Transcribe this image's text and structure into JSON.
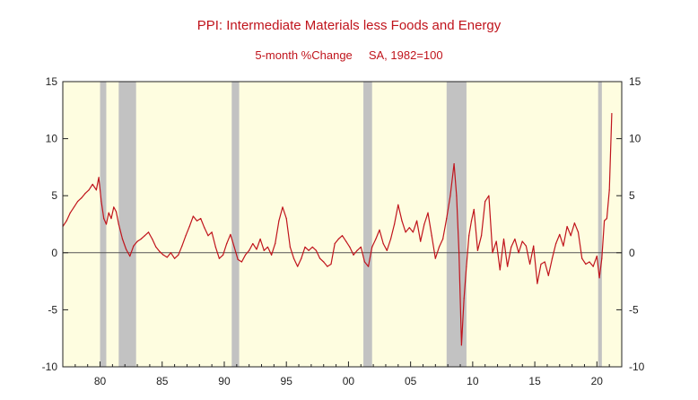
{
  "chart_data": {
    "type": "line",
    "title": "PPI: Intermediate Materials less Foods and Energy",
    "subtitle": "5-month %Change     SA, 1982=100",
    "ylim": [
      -10,
      15
    ],
    "yticks": [
      15,
      10,
      5,
      0,
      -5,
      -10
    ],
    "xlim": [
      1977.0,
      2022.0
    ],
    "xtick_labels": [
      "80",
      "85",
      "90",
      "95",
      "00",
      "05",
      "10",
      "15",
      "20"
    ],
    "xtick_years": [
      1980,
      1985,
      1990,
      1995,
      2000,
      2005,
      2010,
      2015,
      2020
    ],
    "grid": false,
    "zero_line": true,
    "colors": {
      "line": "#c0141c",
      "background": "#fefde0",
      "recession": "#c2c2c2",
      "axis": "#222222",
      "title": "#c0141c"
    },
    "recessions": [
      [
        1980.0,
        1980.5
      ],
      [
        1981.5,
        1982.9
      ],
      [
        1990.6,
        1991.2
      ],
      [
        2001.2,
        2001.9
      ],
      [
        2007.9,
        2009.5
      ],
      [
        2020.1,
        2020.4
      ]
    ],
    "series": [
      {
        "x": [
          1977.0,
          1977.3,
          1977.6,
          1977.9,
          1978.2,
          1978.5,
          1978.8,
          1979.1,
          1979.4,
          1979.7,
          1979.9,
          1980.1,
          1980.3,
          1980.5,
          1980.7,
          1980.9,
          1981.1,
          1981.3,
          1981.5,
          1981.8,
          1982.1,
          1982.4,
          1982.7,
          1983.0,
          1983.3,
          1983.6,
          1983.9,
          1984.2,
          1984.5,
          1984.8,
          1985.1,
          1985.4,
          1985.7,
          1986.0,
          1986.3,
          1986.6,
          1986.9,
          1987.2,
          1987.5,
          1987.8,
          1988.1,
          1988.4,
          1988.7,
          1989.0,
          1989.3,
          1989.6,
          1989.9,
          1990.2,
          1990.5,
          1990.8,
          1991.1,
          1991.4,
          1991.7,
          1992.0,
          1992.3,
          1992.6,
          1992.9,
          1993.2,
          1993.5,
          1993.8,
          1994.1,
          1994.4,
          1994.7,
          1995.0,
          1995.3,
          1995.6,
          1995.9,
          1996.2,
          1996.5,
          1996.8,
          1997.1,
          1997.4,
          1997.7,
          1998.0,
          1998.3,
          1998.6,
          1998.9,
          1999.2,
          1999.5,
          1999.8,
          2000.1,
          2000.4,
          2000.7,
          2001.0,
          2001.3,
          2001.6,
          2001.9,
          2002.2,
          2002.5,
          2002.8,
          2003.1,
          2003.4,
          2003.7,
          2004.0,
          2004.3,
          2004.6,
          2004.9,
          2005.2,
          2005.5,
          2005.8,
          2006.1,
          2006.4,
          2006.7,
          2007.0,
          2007.3,
          2007.6,
          2007.9,
          2008.2,
          2008.5,
          2008.7,
          2008.9,
          2009.1,
          2009.3,
          2009.5,
          2009.7,
          2009.9,
          2010.1,
          2010.4,
          2010.7,
          2011.0,
          2011.3,
          2011.6,
          2011.9,
          2012.2,
          2012.5,
          2012.8,
          2013.1,
          2013.4,
          2013.7,
          2014.0,
          2014.3,
          2014.6,
          2014.9,
          2015.2,
          2015.5,
          2015.8,
          2016.1,
          2016.4,
          2016.7,
          2017.0,
          2017.3,
          2017.6,
          2017.9,
          2018.2,
          2018.5,
          2018.8,
          2019.1,
          2019.4,
          2019.7,
          2020.0,
          2020.2,
          2020.4,
          2020.6,
          2020.8,
          2021.0,
          2021.2
        ],
        "values": [
          2.3,
          2.8,
          3.5,
          4.0,
          4.5,
          4.8,
          5.2,
          5.5,
          6.0,
          5.5,
          6.6,
          4.5,
          3.0,
          2.5,
          3.5,
          3.0,
          4.0,
          3.6,
          2.5,
          1.2,
          0.3,
          -0.3,
          0.6,
          1.0,
          1.2,
          1.5,
          1.8,
          1.2,
          0.5,
          0.1,
          -0.2,
          -0.4,
          0.0,
          -0.5,
          -0.2,
          0.6,
          1.5,
          2.3,
          3.2,
          2.8,
          3.0,
          2.2,
          1.5,
          1.8,
          0.5,
          -0.5,
          -0.2,
          0.8,
          1.6,
          0.5,
          -0.6,
          -0.8,
          -0.2,
          0.2,
          0.8,
          0.3,
          1.2,
          0.2,
          0.5,
          -0.2,
          0.8,
          2.8,
          4.0,
          3.0,
          0.5,
          -0.5,
          -1.2,
          -0.5,
          0.5,
          0.2,
          0.5,
          0.2,
          -0.5,
          -0.8,
          -1.2,
          -1.0,
          0.8,
          1.2,
          1.5,
          1.0,
          0.5,
          -0.2,
          0.2,
          0.5,
          -0.8,
          -1.2,
          0.5,
          1.2,
          2.0,
          0.8,
          0.2,
          1.2,
          2.5,
          4.2,
          2.8,
          1.8,
          2.2,
          1.8,
          2.8,
          1.0,
          2.5,
          3.5,
          1.5,
          -0.5,
          0.5,
          1.2,
          3.0,
          5.0,
          7.8,
          5.0,
          0.0,
          -8.1,
          -4.0,
          -1.2,
          1.5,
          2.8,
          3.8,
          0.2,
          1.5,
          4.5,
          5.0,
          0.0,
          1.0,
          -1.5,
          1.2,
          -1.2,
          0.5,
          1.2,
          0.0,
          1.0,
          0.6,
          -1.0,
          0.6,
          -2.7,
          -1.0,
          -0.8,
          -2.0,
          -0.5,
          0.8,
          1.6,
          0.6,
          2.3,
          1.5,
          2.6,
          1.8,
          -0.5,
          -1.0,
          -0.8,
          -1.2,
          -0.3,
          -2.2,
          -0.5,
          2.8,
          3.0,
          5.5,
          12.2
        ]
      }
    ]
  }
}
